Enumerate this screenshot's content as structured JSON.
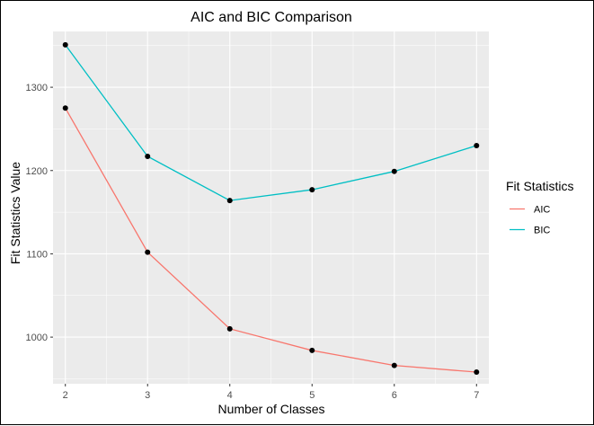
{
  "chart_data": {
    "type": "line",
    "title": "AIC and BIC Comparison",
    "xlabel": "Number of Classes",
    "ylabel": "Fit Statistics Value",
    "x": [
      2,
      3,
      4,
      5,
      6,
      7
    ],
    "xlim": [
      1.85,
      7.15
    ],
    "ylim": [
      944,
      1367
    ],
    "yticks": [
      1000,
      1100,
      1200,
      1300
    ],
    "grid": true,
    "legend": {
      "title": "Fit Statistics",
      "placement": "right"
    },
    "series": [
      {
        "name": "AIC",
        "color": "#F8766D",
        "values": [
          1275,
          1102,
          1010,
          984,
          966,
          958
        ]
      },
      {
        "name": "BIC",
        "color": "#00BFC4",
        "values": [
          1351,
          1217,
          1164,
          1177,
          1199,
          1230
        ]
      }
    ],
    "point_color": "#000000",
    "panel_color": "#EBEBEB",
    "gridline_color": "#FFFFFF"
  }
}
